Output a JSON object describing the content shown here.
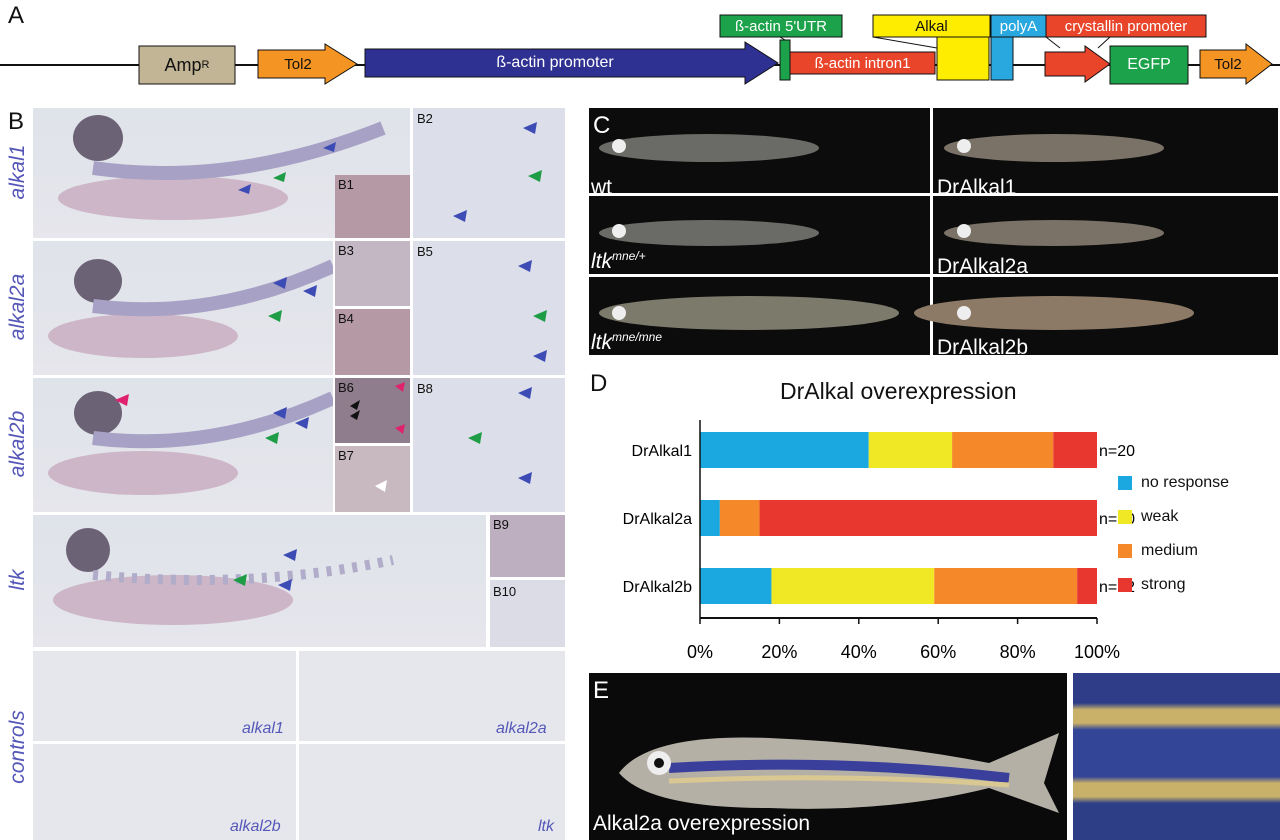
{
  "panels": {
    "a": "A",
    "b": "B",
    "c": "C",
    "d": "D",
    "e": "E"
  },
  "construct": {
    "ampr": "Amp",
    "ampr_sup": "R",
    "tol2_left": "Tol2",
    "bactin_promoter": "ß-actin promoter",
    "utr": "ß-actin 5'UTR",
    "intron": "ß-actin intron1",
    "alkal": "Alkal",
    "polya": "polyA",
    "crystallin": "crystallin promoter",
    "egfp": "EGFP",
    "tol2_right": "Tol2",
    "colors": {
      "ampr": "#c2b596",
      "tol2": "#f39423",
      "promoter": "#2e3192",
      "utr": "#1ca24a",
      "intron": "#e8452b",
      "alkal": "#ffed00",
      "polya": "#29a8e0",
      "crystallin": "#e8452b",
      "egfp": "#1ca24a"
    }
  },
  "panel_b": {
    "rows": [
      {
        "gene": "alkal1",
        "subs": [
          "B1",
          "B2"
        ]
      },
      {
        "gene": "alkal2a",
        "subs": [
          "B3",
          "B4",
          "B5"
        ]
      },
      {
        "gene": "alkal2b",
        "subs": [
          "B6",
          "B7",
          "B8"
        ]
      },
      {
        "gene": "ltk",
        "subs": [
          "B9",
          "B10"
        ]
      }
    ],
    "controls_label": "controls",
    "controls": [
      "alkal1",
      "alkal2a",
      "alkal2b",
      "ltk"
    ]
  },
  "panel_c": {
    "fish": [
      {
        "label": "wt",
        "sup": ""
      },
      {
        "label": "DrAlkal1",
        "sup": ""
      },
      {
        "label": "ltk",
        "sup": "mne/+"
      },
      {
        "label": "DrAlkal2a",
        "sup": ""
      },
      {
        "label": "ltk",
        "sup": "mne/mne"
      },
      {
        "label": "DrAlkal2b",
        "sup": ""
      }
    ]
  },
  "chart_data": {
    "type": "bar",
    "stacked": true,
    "orientation": "horizontal",
    "title": "DrAlkal overexpression",
    "categories": [
      "DrAlkal1",
      "DrAlkal2a",
      "DrAlkal2b"
    ],
    "n_labels": [
      "n=20",
      "n=20",
      "n=22"
    ],
    "series": [
      {
        "name": "no response",
        "color": "#1ba8e0",
        "values": [
          42.5,
          5,
          18
        ]
      },
      {
        "name": "weak",
        "color": "#f0e825",
        "values": [
          21,
          0,
          41
        ]
      },
      {
        "name": "medium",
        "color": "#f5892a",
        "values": [
          25.5,
          10,
          36
        ]
      },
      {
        "name": "strong",
        "color": "#e8372f",
        "values": [
          11,
          85,
          5
        ]
      }
    ],
    "xlim": [
      0,
      100
    ],
    "xticks": [
      "0%",
      "20%",
      "40%",
      "60%",
      "80%",
      "100%"
    ],
    "legend_position": "right"
  },
  "panel_e": {
    "caption": "Alkal2a overexpression"
  }
}
